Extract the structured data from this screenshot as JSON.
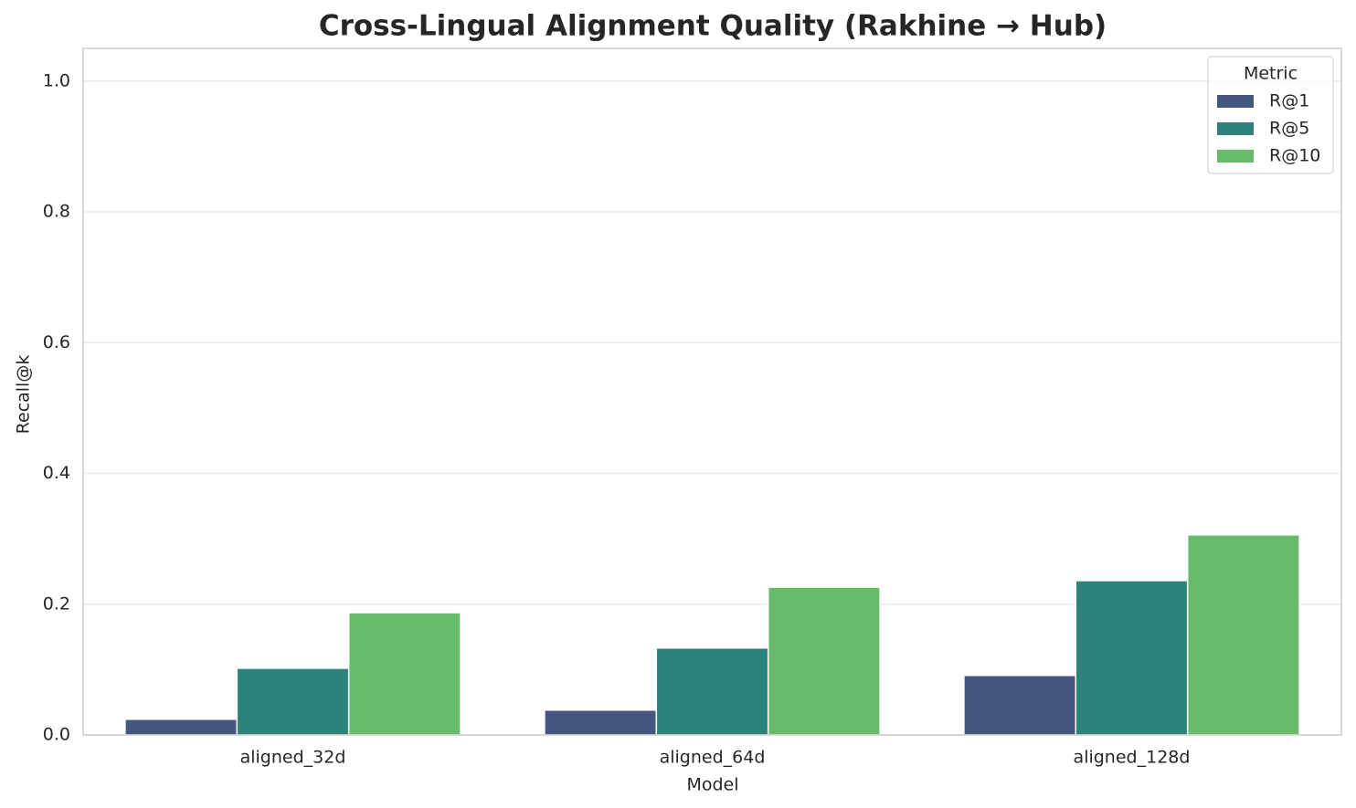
{
  "chart_data": {
    "type": "bar",
    "title": "Cross-Lingual Alignment Quality (Rakhine → Hub)",
    "x_label": "Model",
    "y_label": "Recall@k",
    "categories": [
      "aligned_32d",
      "aligned_64d",
      "aligned_128d"
    ],
    "series": [
      {
        "name": "R@1",
        "color": "#455681",
        "values": [
          0.024,
          0.038,
          0.091
        ]
      },
      {
        "name": "R@5",
        "color": "#2e827c",
        "values": [
          0.102,
          0.133,
          0.236
        ]
      },
      {
        "name": "R@10",
        "color": "#68bb6a",
        "values": [
          0.187,
          0.226,
          0.306
        ]
      }
    ],
    "legend_title": "Metric",
    "legend": "upper right",
    "ylim": [
      0,
      1.05
    ],
    "yticks": [
      {
        "value": 0,
        "label": "0.0"
      },
      0.2,
      0.4,
      0.6,
      0.8,
      {
        "value": 1,
        "label": "1.0"
      }
    ],
    "grid": true
  }
}
